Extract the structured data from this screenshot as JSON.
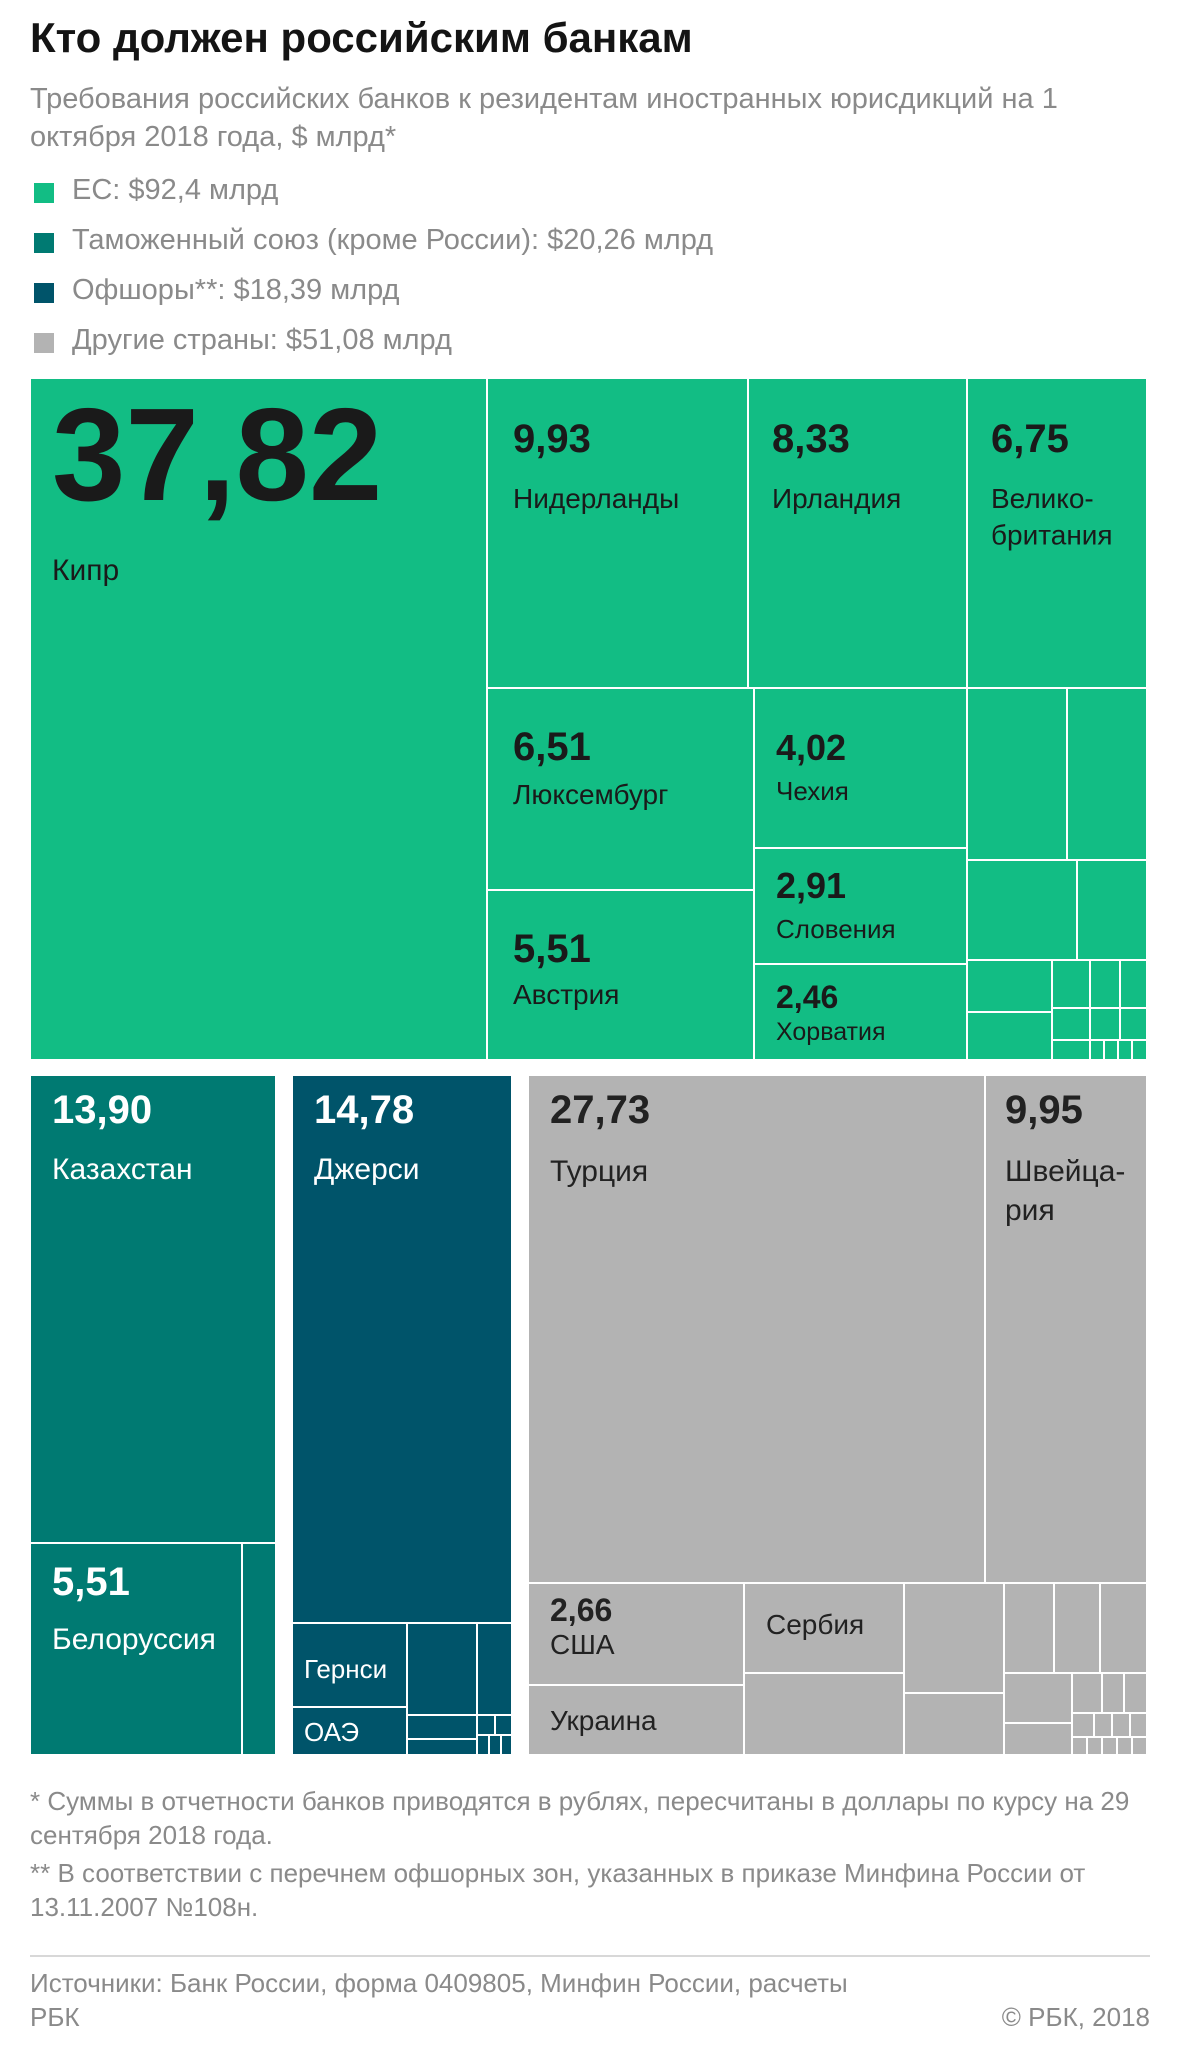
{
  "title": "Кто должен российским банкам",
  "subtitle": "Требования российских банков к резидентам иностранных юрисдикций на 1 октября 2018 года, $ млрд*",
  "legend": [
    {
      "label": "ЕС: $92,4 млрд",
      "color": "#12bd84"
    },
    {
      "label": "Таможенный союз (кроме России): $20,26 млрд",
      "color": "#007a72"
    },
    {
      "label": "Офшоры**: $18,39 млрд",
      "color": "#00546a"
    },
    {
      "label": "Другие страны: $51,08 млрд",
      "color": "#b3b3b3"
    }
  ],
  "chart_data": {
    "type": "treemap",
    "unit": "$ млрд",
    "groups": [
      {
        "name": "ЕС",
        "total": 92.4,
        "items": [
          {
            "name": "Кипр",
            "value": 37.82,
            "value_label": "37,82"
          },
          {
            "name": "Нидерланды",
            "value": 9.93,
            "value_label": "9,93"
          },
          {
            "name": "Ирландия",
            "value": 8.33,
            "value_label": "8,33"
          },
          {
            "name": "Велико-британия",
            "value": 6.75,
            "value_label": "6,75"
          },
          {
            "name": "Люксембург",
            "value": 6.51,
            "value_label": "6,51"
          },
          {
            "name": "Австрия",
            "value": 5.51,
            "value_label": "5,51"
          },
          {
            "name": "Чехия",
            "value": 4.02,
            "value_label": "4,02"
          },
          {
            "name": "Словения",
            "value": 2.91,
            "value_label": "2,91"
          },
          {
            "name": "Хорватия",
            "value": 2.46,
            "value_label": "2,46"
          }
        ]
      },
      {
        "name": "Таможенный союз (кроме России)",
        "total": 20.26,
        "items": [
          {
            "name": "Казахстан",
            "value": 13.9,
            "value_label": "13,90"
          },
          {
            "name": "Белоруссия",
            "value": 5.51,
            "value_label": "5,51"
          }
        ]
      },
      {
        "name": "Офшоры",
        "total": 18.39,
        "items": [
          {
            "name": "Джерси",
            "value": 14.78,
            "value_label": "14,78"
          },
          {
            "name": "Гернси",
            "value": null,
            "value_label": ""
          },
          {
            "name": "ОАЭ",
            "value": null,
            "value_label": ""
          }
        ]
      },
      {
        "name": "Другие страны",
        "total": 51.08,
        "items": [
          {
            "name": "Турция",
            "value": 27.73,
            "value_label": "27,73"
          },
          {
            "name": "Швейца-рия",
            "value": 9.95,
            "value_label": "9,95"
          },
          {
            "name": "США",
            "value": 2.66,
            "value_label": "2,66"
          },
          {
            "name": "Сербия",
            "value": null,
            "value_label": ""
          },
          {
            "name": "Украина",
            "value": null,
            "value_label": ""
          }
        ]
      }
    ]
  },
  "footnotes": [
    "* Суммы в отчетности банков приводятся в рублях, пересчитаны в доллары по курсу на 29 сентября 2018 года.",
    "** В соответствии с перечнем офшорных зон, указанных в приказе Минфина России от 13.11.2007 №108н."
  ],
  "sources": "Источники: Банк России, форма 0409805, Минфин России, расчеты РБК",
  "copyright": "© РБК, 2018"
}
